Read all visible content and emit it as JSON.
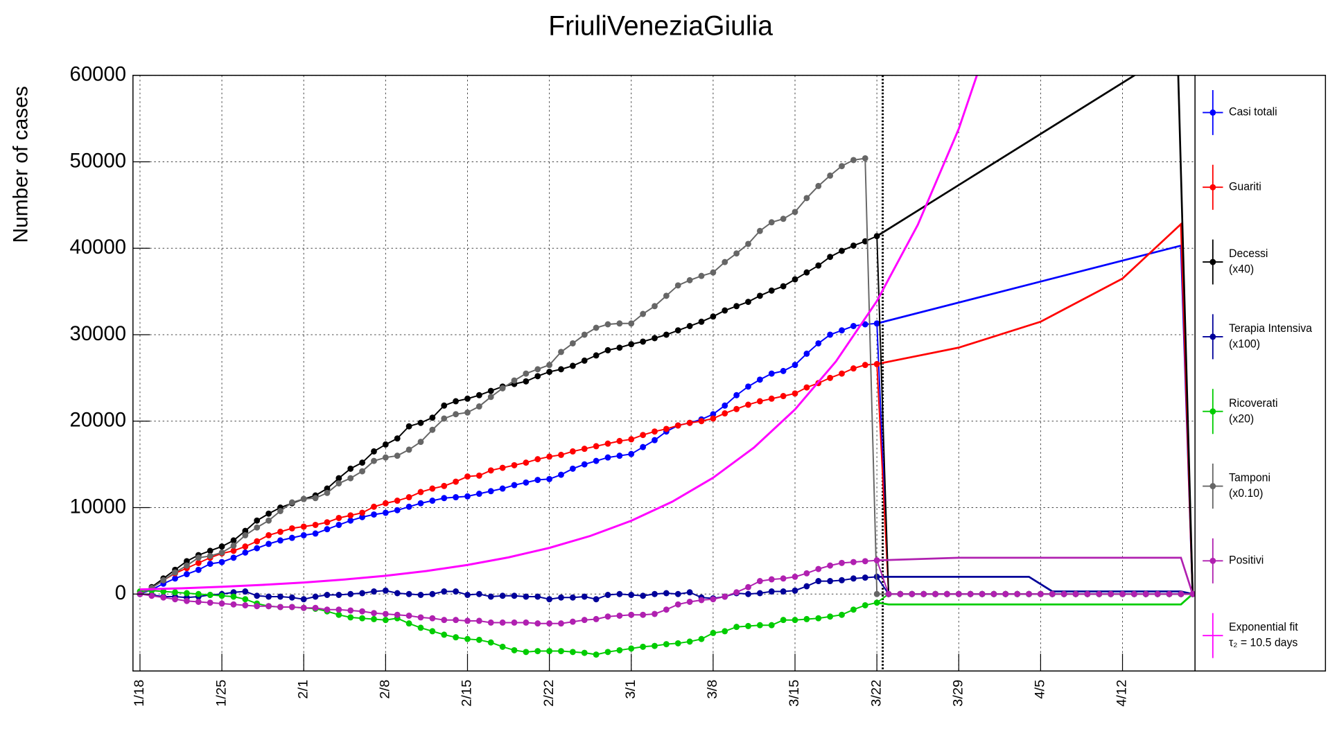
{
  "chart_data": {
    "type": "line",
    "title": "FriuliVeneziaGiulia",
    "y_label": "Number of cases",
    "xlim": [
      -0.6,
      90.2
    ],
    "ylim": [
      -8900,
      60000
    ],
    "xticks": [
      {
        "value": 0,
        "label": "1/18"
      },
      {
        "value": 7,
        "label": "1/25"
      },
      {
        "value": 14,
        "label": "2/1"
      },
      {
        "value": 21,
        "label": "2/8"
      },
      {
        "value": 28,
        "label": "2/15"
      },
      {
        "value": 35,
        "label": "2/22"
      },
      {
        "value": 42,
        "label": "3/1"
      },
      {
        "value": 49,
        "label": "3/8"
      },
      {
        "value": 56,
        "label": "3/15"
      },
      {
        "value": 63,
        "label": "3/22"
      },
      {
        "value": 70,
        "label": "3/29"
      },
      {
        "value": 77,
        "label": "4/5"
      },
      {
        "value": 84,
        "label": "4/12"
      }
    ],
    "yticks": [
      0,
      10000,
      20000,
      30000,
      40000,
      50000,
      60000
    ],
    "grid": true,
    "vline": 63.5,
    "legend": "right",
    "series": [
      {
        "name": "Casi totali",
        "color": "#0000ff",
        "markers": true,
        "values": [
          0,
          500,
          1200,
          1800,
          2300,
          2800,
          3500,
          3700,
          4200,
          4800,
          5300,
          5800,
          6200,
          6500,
          6800,
          7000,
          7500,
          8000,
          8500,
          8900,
          9200,
          9400,
          9700,
          10100,
          10500,
          10800,
          11100,
          11200,
          11300,
          11600,
          11900,
          12200,
          12600,
          12900,
          13200,
          13300,
          13800,
          14500,
          15000,
          15400,
          15800,
          16000,
          16200,
          17000,
          17800,
          18800,
          19500,
          19800,
          20200,
          20800,
          21800,
          23000,
          24000,
          24800,
          25500,
          25800,
          26500,
          27800,
          29000,
          30000,
          30500,
          31000,
          31200,
          31300,
          0,
          0,
          0,
          0,
          0,
          0,
          0,
          0,
          0,
          0,
          0,
          0,
          0,
          0,
          0,
          0,
          0,
          0,
          0,
          0,
          0,
          0,
          0,
          0,
          0,
          0,
          0
        ],
        "projection": {
          "x": [
            63,
            89,
            90
          ],
          "values": [
            31300,
            40300,
            0
          ]
        }
      },
      {
        "name": "Guariti",
        "color": "#ff0000",
        "markers": true,
        "values": [
          0,
          700,
          1600,
          2400,
          3000,
          3600,
          4200,
          4700,
          5000,
          5500,
          6100,
          6800,
          7200,
          7600,
          7800,
          8000,
          8300,
          8800,
          9100,
          9400,
          10100,
          10500,
          10800,
          11200,
          11800,
          12200,
          12500,
          13000,
          13600,
          13700,
          14300,
          14600,
          14900,
          15200,
          15600,
          15900,
          16100,
          16500,
          16800,
          17100,
          17400,
          17700,
          17900,
          18400,
          18800,
          19100,
          19500,
          19800,
          20000,
          20300,
          20900,
          21400,
          21900,
          22300,
          22600,
          22900,
          23200,
          23900,
          24400,
          25000,
          25500,
          26100,
          26500,
          26600,
          0,
          0,
          0,
          0,
          0,
          0,
          0,
          0,
          0,
          0,
          0,
          0,
          0,
          0,
          0,
          0,
          0,
          0,
          0,
          0,
          0,
          0,
          0,
          0,
          0,
          0,
          0
        ],
        "projection": {
          "x": [
            63,
            70,
            77,
            84,
            89,
            90
          ],
          "values": [
            26600,
            28500,
            31500,
            36500,
            42800,
            0
          ]
        }
      },
      {
        "name": "Decessi",
        "scale_label": "(x40)",
        "color": "#000000",
        "markers": true,
        "values": [
          0,
          800,
          1800,
          2800,
          3800,
          4500,
          5000,
          5500,
          6200,
          7300,
          8500,
          9300,
          10000,
          10500,
          11000,
          11400,
          12200,
          13400,
          14500,
          15200,
          16500,
          17300,
          18000,
          19400,
          19800,
          20400,
          21800,
          22300,
          22600,
          23000,
          23500,
          24000,
          24300,
          24600,
          25200,
          25700,
          26000,
          26400,
          27000,
          27600,
          28200,
          28500,
          28900,
          29200,
          29600,
          30000,
          30500,
          31000,
          31500,
          32100,
          32800,
          33300,
          33800,
          34500,
          35100,
          35600,
          36400,
          37200,
          38000,
          39000,
          39700,
          40300,
          40800,
          41400,
          0,
          0,
          0,
          0,
          0,
          0,
          0,
          0,
          0,
          0,
          0,
          0,
          0,
          0,
          0,
          0,
          0,
          0,
          0,
          0,
          0,
          0,
          0,
          0,
          0,
          0,
          0
        ],
        "projection": {
          "x": [
            63,
            88.7,
            90
          ],
          "values": [
            41400,
            63100,
            0
          ]
        }
      },
      {
        "name": "Terapia Intensiva",
        "scale_label": "(x100)",
        "color": "#000099",
        "markers": true,
        "values": [
          0,
          -100,
          -300,
          -300,
          -400,
          -300,
          -100,
          0,
          200,
          300,
          -200,
          -300,
          -300,
          -400,
          -600,
          -300,
          -100,
          -100,
          0,
          100,
          300,
          400,
          100,
          0,
          -100,
          0,
          300,
          300,
          -100,
          0,
          -300,
          -200,
          -200,
          -300,
          -300,
          -600,
          -400,
          -400,
          -300,
          -600,
          -100,
          0,
          -100,
          -200,
          0,
          100,
          0,
          200,
          -400,
          -500,
          -300,
          100,
          0,
          100,
          300,
          300,
          400,
          900,
          1500,
          1500,
          1600,
          1800,
          1900,
          2000,
          0,
          0,
          0,
          0,
          0,
          0,
          0,
          0,
          0,
          0,
          0,
          0,
          0,
          0,
          0,
          0,
          0,
          0,
          0,
          0,
          0,
          0,
          0,
          0,
          0,
          0,
          0
        ],
        "projection": {
          "x": [
            63,
            76,
            78,
            89,
            90
          ],
          "values": [
            2000,
            2000,
            300,
            300,
            0
          ]
        }
      },
      {
        "name": "Ricoverati",
        "scale_label": "(x20)",
        "color": "#00cc00",
        "markers": true,
        "values": [
          300,
          400,
          300,
          200,
          100,
          0,
          -100,
          -200,
          -300,
          -600,
          -1100,
          -1400,
          -1500,
          -1500,
          -1600,
          -1700,
          -2000,
          -2400,
          -2700,
          -2800,
          -2900,
          -3000,
          -2800,
          -3400,
          -3900,
          -4300,
          -4700,
          -5000,
          -5200,
          -5300,
          -5600,
          -6100,
          -6500,
          -6700,
          -6600,
          -6600,
          -6600,
          -6700,
          -6800,
          -7000,
          -6700,
          -6500,
          -6300,
          -6100,
          -6000,
          -5800,
          -5700,
          -5500,
          -5200,
          -4500,
          -4300,
          -3800,
          -3700,
          -3600,
          -3600,
          -3000,
          -3000,
          -2900,
          -2800,
          -2600,
          -2400,
          -1800,
          -1300,
          -1000,
          0,
          0,
          0,
          0,
          0,
          0,
          0,
          0,
          0,
          0,
          0,
          0,
          0,
          0,
          0,
          0,
          0,
          0,
          0,
          0,
          0,
          0,
          0,
          0,
          0,
          0,
          0
        ],
        "projection": {
          "x": [
            63,
            64,
            89,
            90
          ],
          "values": [
            -1000,
            -1200,
            -1200,
            0
          ]
        }
      },
      {
        "name": "Tamponi",
        "scale_label": "(x0.10)",
        "color": "#666666",
        "markers": true,
        "values": [
          0,
          700,
          1600,
          2500,
          3300,
          4200,
          4400,
          4800,
          5600,
          6800,
          7700,
          8500,
          9600,
          10600,
          11000,
          11100,
          11700,
          12800,
          13400,
          14200,
          15400,
          15800,
          16000,
          16700,
          17600,
          19000,
          20300,
          20800,
          21000,
          21700,
          22800,
          23800,
          24700,
          25500,
          26000,
          26500,
          28000,
          29000,
          30000,
          30800,
          31200,
          31300,
          31300,
          32400,
          33300,
          34500,
          35700,
          36300,
          36800,
          37200,
          38400,
          39400,
          40500,
          42000,
          43000,
          43400,
          44200,
          45800,
          47200,
          48400,
          49500,
          50200,
          50400,
          0,
          0,
          0,
          0,
          0,
          0,
          0,
          0,
          0,
          0,
          0,
          0,
          0,
          0,
          0,
          0,
          0,
          0,
          0,
          0,
          0,
          0,
          0,
          0,
          0,
          0,
          0,
          0
        ]
      },
      {
        "name": "Positivi",
        "color": "#b020b0",
        "markers": true,
        "values": [
          0,
          -200,
          -400,
          -600,
          -800,
          -900,
          -1000,
          -1100,
          -1200,
          -1300,
          -1400,
          -1400,
          -1500,
          -1500,
          -1600,
          -1600,
          -1800,
          -1800,
          -1900,
          -2000,
          -2200,
          -2300,
          -2400,
          -2500,
          -2700,
          -2800,
          -3000,
          -3000,
          -3100,
          -3100,
          -3300,
          -3300,
          -3300,
          -3300,
          -3400,
          -3400,
          -3400,
          -3200,
          -3000,
          -2900,
          -2600,
          -2500,
          -2400,
          -2400,
          -2300,
          -1800,
          -1200,
          -900,
          -700,
          -600,
          -300,
          200,
          800,
          1500,
          1700,
          1800,
          2000,
          2400,
          2900,
          3300,
          3600,
          3700,
          3800,
          3900,
          0,
          0,
          0,
          0,
          0,
          0,
          0,
          0,
          0,
          0,
          0,
          0,
          0,
          0,
          0,
          0,
          0,
          0,
          0,
          0,
          0,
          0,
          0,
          0,
          0,
          0,
          0
        ],
        "projection": {
          "x": [
            63,
            70,
            89,
            90
          ],
          "values": [
            3900,
            4200,
            4200,
            0
          ]
        }
      },
      {
        "name": "Exponential fit",
        "scale_label": "τ₂ = 10.5 days",
        "color": "#ff00ff",
        "markers": false,
        "x": [
          0,
          3.5,
          7,
          10.5,
          14,
          17.5,
          21,
          24.5,
          28,
          31.5,
          35,
          38.5,
          42,
          45.5,
          49,
          52.5,
          56,
          59.5,
          63,
          66.5,
          70,
          73.5
        ],
        "values": [
          530,
          668,
          841,
          1060,
          1335,
          1682,
          2119,
          2670,
          3363,
          4237,
          5338,
          6726,
          8475,
          10677,
          13450,
          16947,
          21350,
          26900,
          33900,
          42710,
          53800,
          67790
        ]
      }
    ]
  }
}
